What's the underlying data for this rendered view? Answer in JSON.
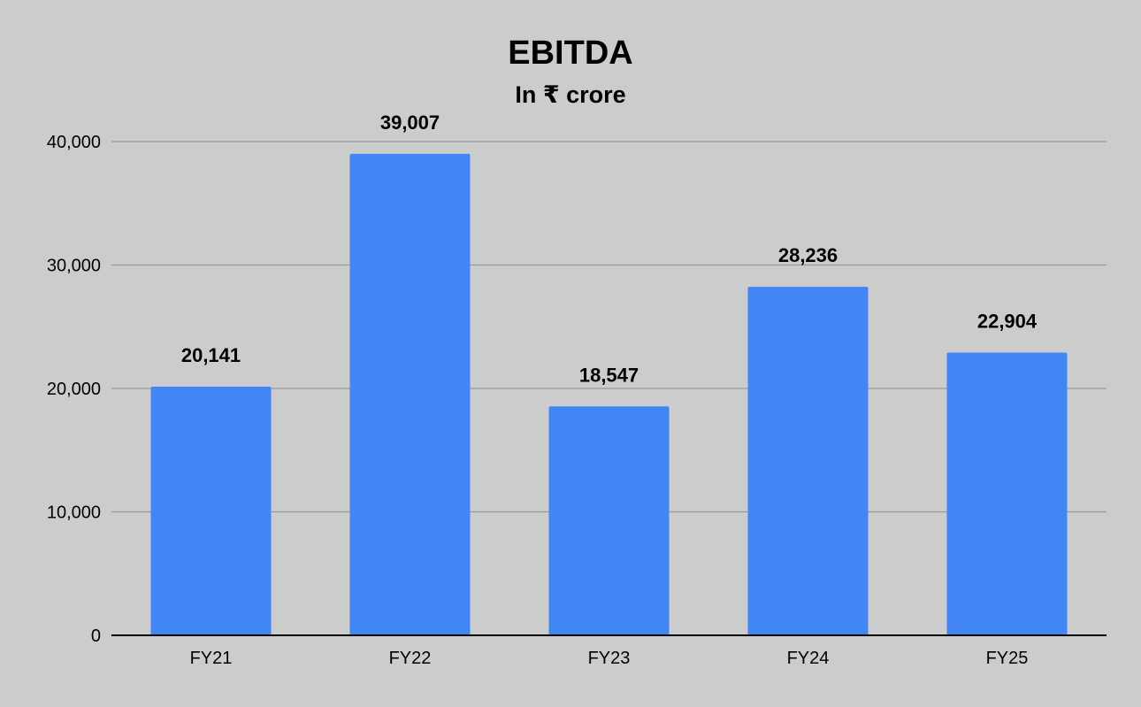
{
  "chart_data": {
    "type": "bar",
    "title": "EBITDA",
    "subtitle": "In ₹ crore",
    "xlabel": "",
    "ylabel": "",
    "categories": [
      "FY21",
      "FY22",
      "FY23",
      "FY24",
      "FY25"
    ],
    "values": [
      20141,
      39007,
      18547,
      28236,
      22904
    ],
    "data_labels": [
      "20,141",
      "39,007",
      "18,547",
      "28,236",
      "22,904"
    ],
    "ylim": [
      0,
      40000
    ],
    "yticks": [
      0,
      10000,
      20000,
      30000,
      40000
    ],
    "ytick_labels": [
      "0",
      "10,000",
      "20,000",
      "30,000",
      "40,000"
    ],
    "grid": true,
    "legend": "none",
    "colors": {
      "bar": "#4285f4",
      "background": "#cccccc",
      "gridline": "#999999",
      "axis": "#000000",
      "text": "#000000"
    }
  }
}
